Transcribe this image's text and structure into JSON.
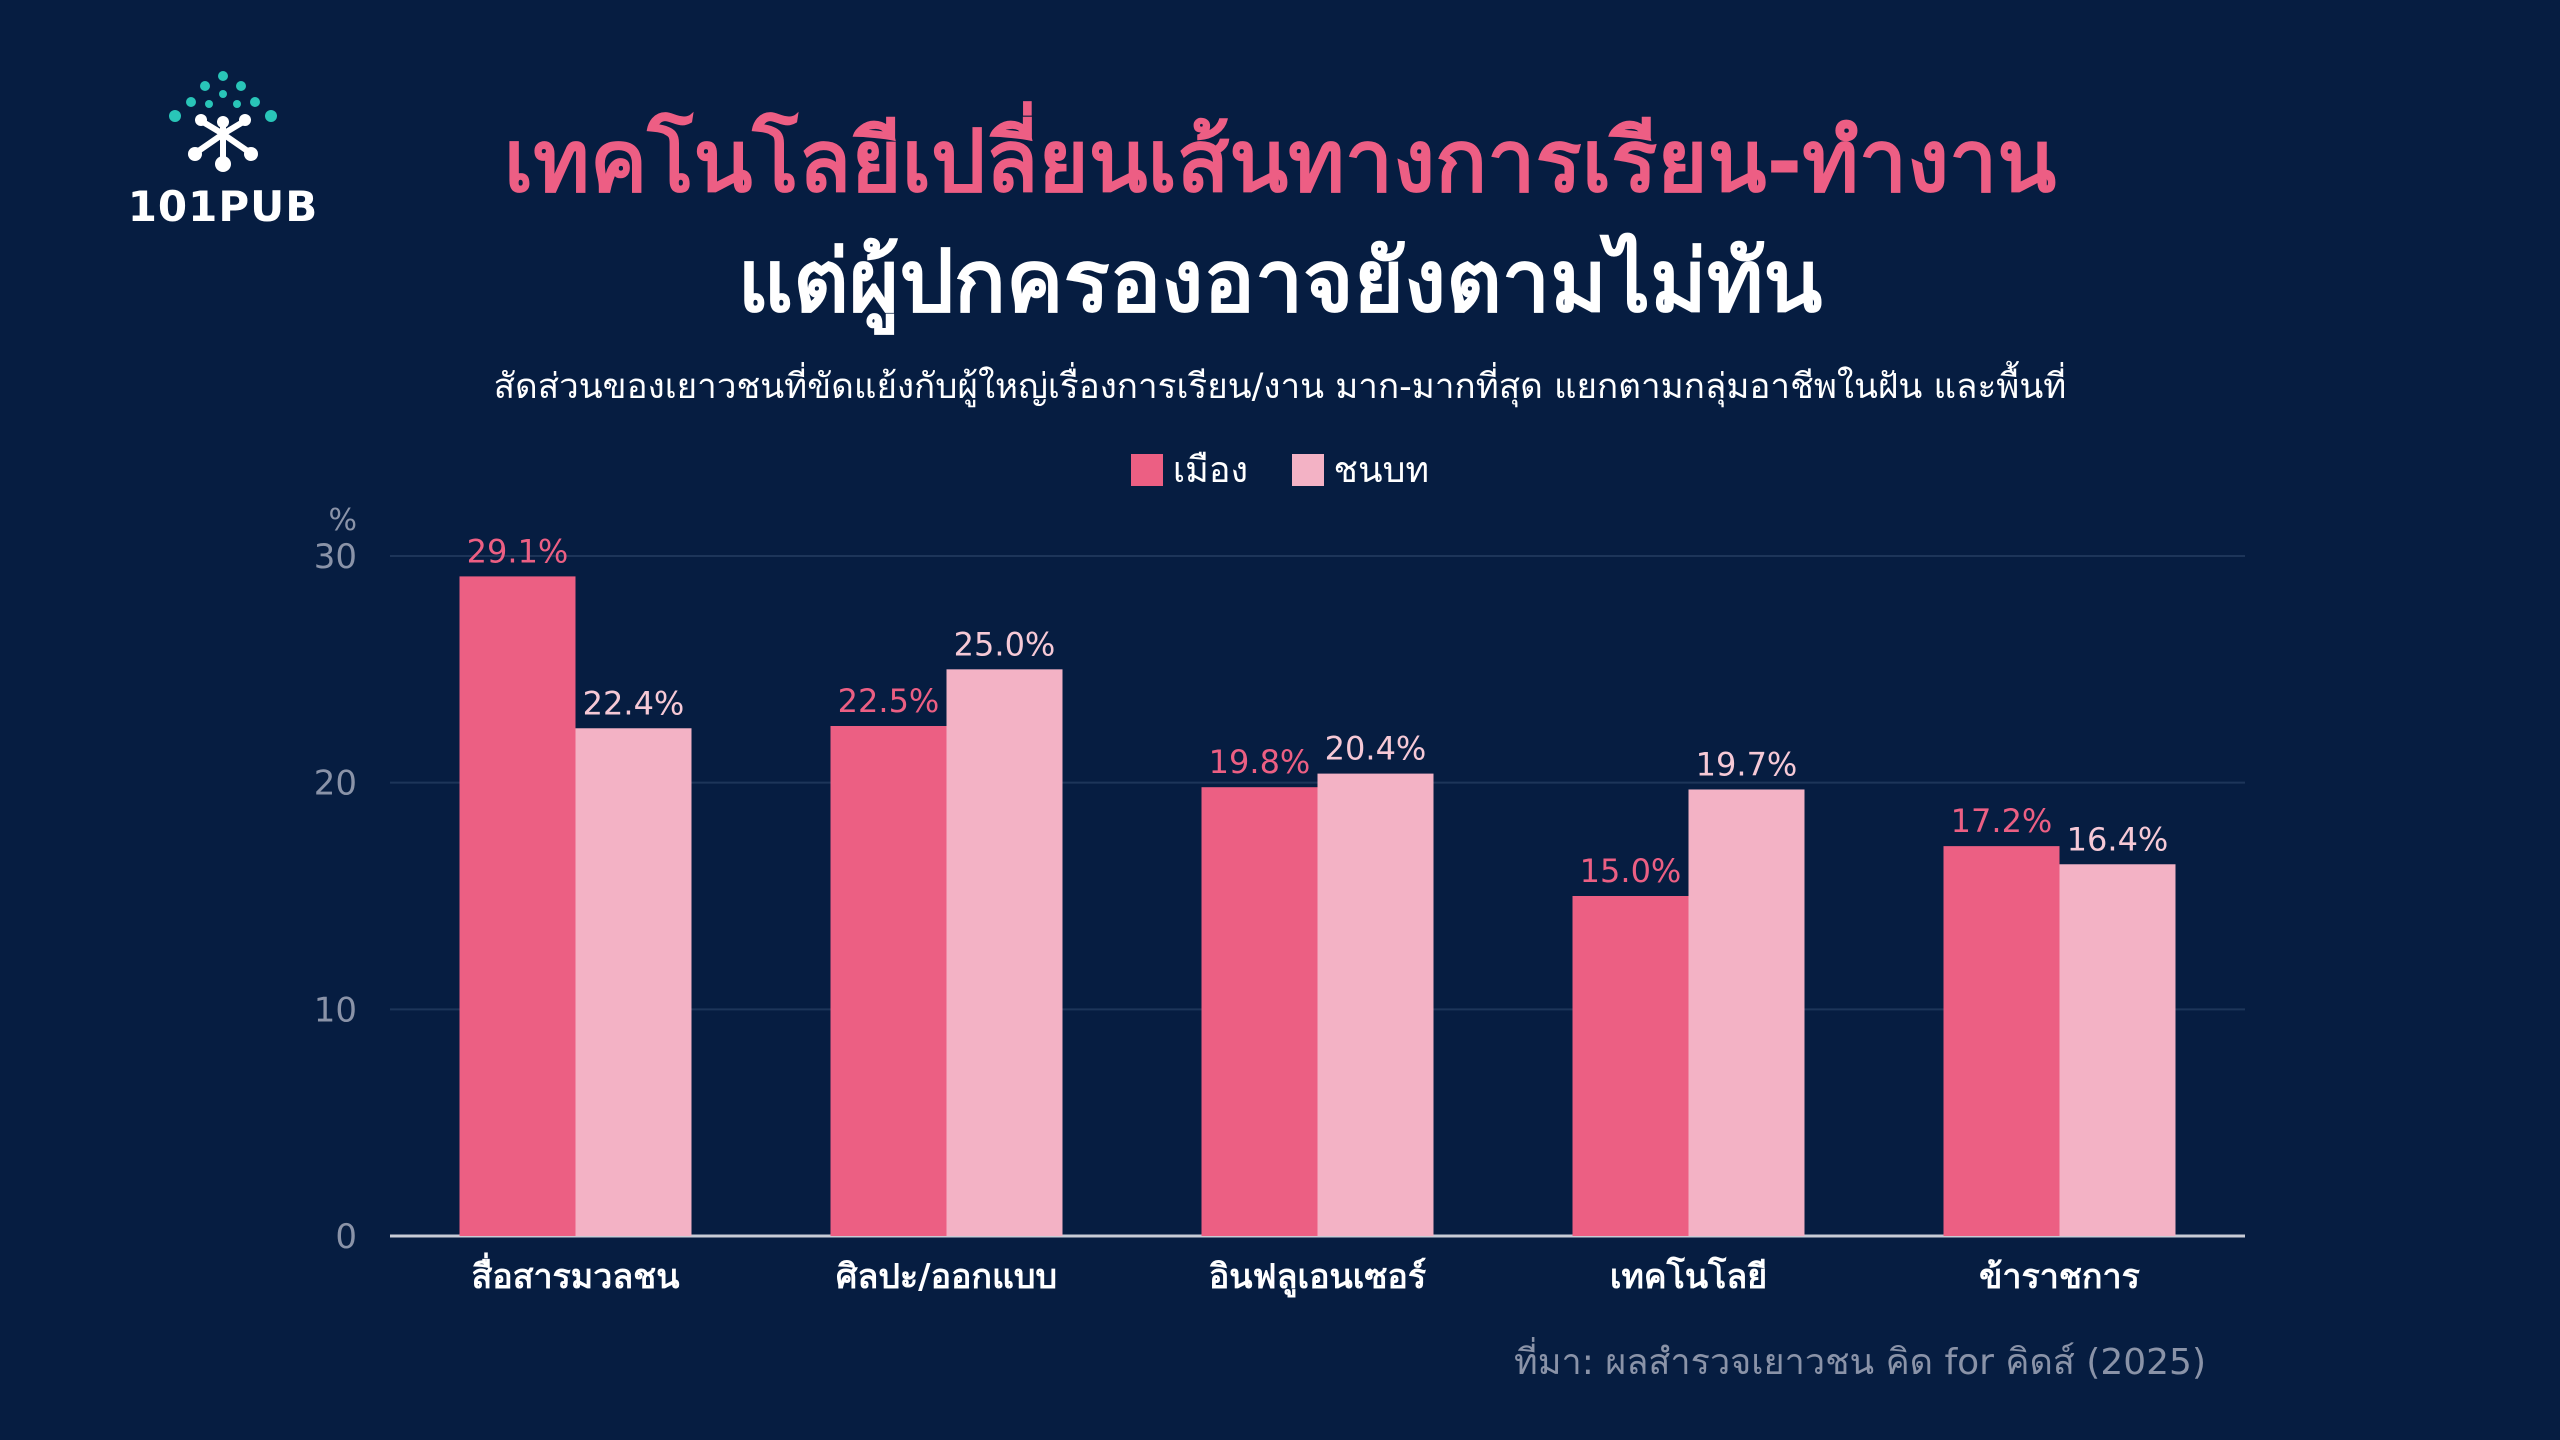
{
  "logo": {
    "text": "101PUB",
    "accent": "#29c5b8"
  },
  "title_line1": "เทคโนโลยีเปลี่ยนเส้นทางการเรียน-ทำงาน",
  "title_line2": "แต่ผู้ปกครองอาจยังตามไม่ทัน",
  "subtitle": "สัดส่วนของเยาวชนที่ขัดแย้งกับผู้ใหญ่เรื่องการเรียน/งาน มาก-มากที่สุด แยกตามกลุ่มอาชีพในฝัน และพื้นที่",
  "source": "ที่มา: ผลสำรวจเยาวชน คิด for คิดส์ (2025)",
  "colors": {
    "background": "#061d41",
    "urban": "#ec5f83",
    "rural": "#f3b2c5",
    "title_accent": "#ed5e84"
  },
  "chart_data": {
    "type": "bar",
    "categories": [
      "สื่อสารมวลชน",
      "ศิลปะ/ออกแบบ",
      "อินฟลูเอนเซอร์",
      "เทคโนโลยี",
      "ข้าราชการ"
    ],
    "series": [
      {
        "name": "เมือง",
        "values": [
          29.1,
          22.5,
          19.8,
          15.0,
          17.2
        ],
        "labels": [
          "29.1%",
          "22.5%",
          "19.8%",
          "15.0%",
          "17.2%"
        ]
      },
      {
        "name": "ชนบท",
        "values": [
          22.4,
          25.0,
          20.4,
          19.7,
          16.4
        ],
        "labels": [
          "22.4%",
          "25.0%",
          "20.4%",
          "19.7%",
          "16.4%"
        ]
      }
    ],
    "yunit": "%",
    "yticks": [
      "0",
      "10",
      "20",
      "30"
    ],
    "ylim": [
      0,
      30
    ],
    "grid": true,
    "legend_position": "top-center"
  }
}
